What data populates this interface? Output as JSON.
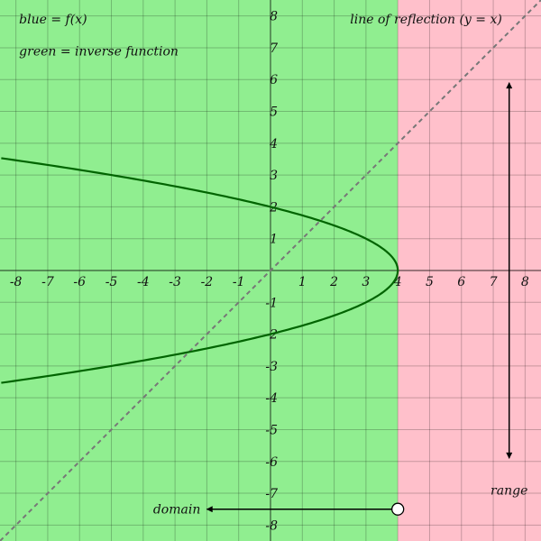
{
  "chart_data": {
    "type": "line",
    "xlim": [
      -8.5,
      8.5
    ],
    "ylim": [
      -8.5,
      8.5
    ],
    "grid": true,
    "x_ticks": [
      -8,
      -7,
      -6,
      -5,
      -4,
      -3,
      -2,
      -1,
      1,
      2,
      3,
      4,
      5,
      6,
      7,
      8
    ],
    "y_ticks": [
      -8,
      -7,
      -6,
      -5,
      -4,
      -3,
      -2,
      -1,
      1,
      2,
      3,
      4,
      5,
      6,
      7,
      8
    ],
    "regions": [
      {
        "name": "domain-region",
        "x_from": -8.5,
        "x_to": 4,
        "color": "#90ee90"
      },
      {
        "name": "excluded-region",
        "x_from": 4,
        "x_to": 8.5,
        "color": "#ffc0cb"
      }
    ],
    "inverse_curve": {
      "relation": "x = 4 - y^2",
      "vertex": [
        4,
        0
      ],
      "y_range": [
        -3.53,
        3.53
      ],
      "color": "#006400"
    },
    "reflection_line": {
      "relation": "y = x",
      "color": "#777777",
      "style": "dashed"
    },
    "domain_arrow": {
      "from": [
        4,
        -7.5
      ],
      "to": [
        -2,
        -7.5
      ],
      "open_circle_at": [
        4,
        -7.5
      ]
    },
    "range_arrow": {
      "x": 7.5,
      "from": -5.9,
      "to": 5.9
    },
    "annotations": [
      {
        "text": "blue = f(x)",
        "at": [
          -7.9,
          7.9
        ],
        "anchor": "start"
      },
      {
        "text": "green = inverse function",
        "at": [
          -7.9,
          6.9
        ],
        "anchor": "start"
      },
      {
        "text": "line of reflection (y = x)",
        "at": [
          2.5,
          7.9
        ],
        "anchor": "start"
      },
      {
        "text": "range",
        "at": [
          7.5,
          -6.9
        ],
        "anchor": "middle"
      },
      {
        "text": "domain",
        "at": [
          -2.2,
          -7.5
        ],
        "anchor": "end"
      }
    ]
  }
}
